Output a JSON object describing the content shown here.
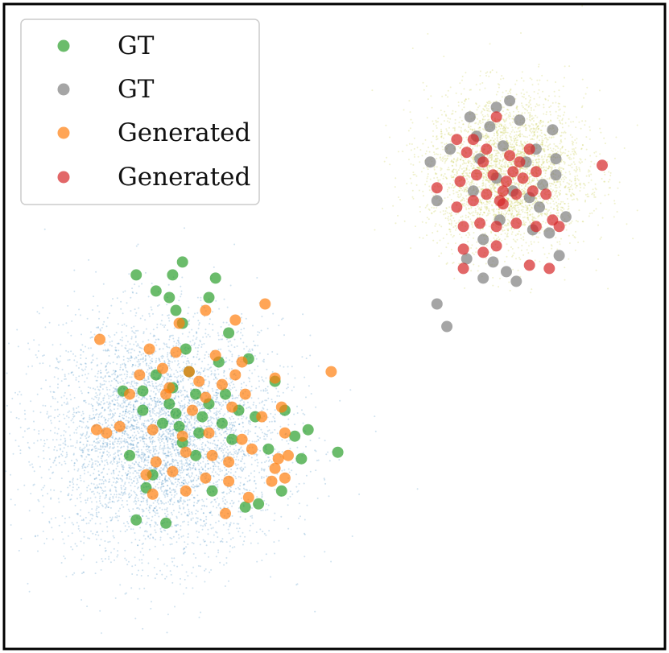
{
  "chart_data": {
    "type": "scatter",
    "title": "",
    "xlabel": "",
    "ylabel": "",
    "axes_ticks_visible": false,
    "grid": false,
    "legend_position": "top-left",
    "xlim": [
      -5,
      5
    ],
    "ylim": [
      -5,
      5
    ],
    "clusters": [
      {
        "role": "background density",
        "color": "#1f77b4",
        "center": [
          -2.6,
          -1.7
        ],
        "spread": 0.9,
        "count": 5000
      },
      {
        "role": "background density",
        "color": "#bcbd22",
        "center": [
          2.6,
          2.4
        ],
        "spread": 0.6,
        "count": 3500
      }
    ],
    "series": [
      {
        "name": "GT",
        "color": "#2ca02c",
        "points": [
          [
            -3.0,
            0.8
          ],
          [
            -2.3,
            1.0
          ],
          [
            -2.45,
            0.8
          ],
          [
            -1.8,
            0.75
          ],
          [
            -2.7,
            0.55
          ],
          [
            -1.9,
            0.45
          ],
          [
            -2.5,
            0.45
          ],
          [
            -2.4,
            0.25
          ],
          [
            -2.3,
            0.05
          ],
          [
            -1.6,
            -0.1
          ],
          [
            -2.25,
            -0.35
          ],
          [
            -2.7,
            -0.75
          ],
          [
            -3.2,
            -1.0
          ],
          [
            -2.9,
            -1.0
          ],
          [
            -2.45,
            -0.95
          ],
          [
            -2.1,
            -1.05
          ],
          [
            -1.45,
            -1.3
          ],
          [
            -2.35,
            -1.55
          ],
          [
            -2.6,
            -1.5
          ],
          [
            -2.9,
            -1.3
          ],
          [
            -2.0,
            -1.4
          ],
          [
            -2.3,
            -1.8
          ],
          [
            -1.55,
            -1.75
          ],
          [
            -3.1,
            -2.0
          ],
          [
            -1.2,
            -1.4
          ],
          [
            -0.9,
            -0.85
          ],
          [
            -0.6,
            -1.7
          ],
          [
            -1.0,
            -1.9
          ],
          [
            -0.5,
            -2.05
          ],
          [
            -2.75,
            -2.3
          ],
          [
            -1.85,
            -2.55
          ],
          [
            -1.35,
            -2.8
          ],
          [
            -0.8,
            -2.55
          ],
          [
            -1.15,
            -2.75
          ],
          [
            -2.55,
            -3.05
          ],
          [
            -0.4,
            -1.6
          ],
          [
            0.05,
            -1.95
          ],
          [
            -2.2,
            -0.7
          ],
          [
            -1.75,
            -0.55
          ],
          [
            -2.5,
            -1.2
          ],
          [
            -2.05,
            -1.65
          ],
          [
            -1.65,
            -1.05
          ],
          [
            -0.75,
            -1.3
          ],
          [
            -2.85,
            -2.5
          ],
          [
            -3.0,
            -3.0
          ],
          [
            -1.3,
            -0.5
          ],
          [
            -2.1,
            -2.0
          ],
          [
            -1.9,
            -1.2
          ],
          [
            -2.4,
            -1.35
          ],
          [
            -1.7,
            -1.5
          ]
        ]
      },
      {
        "name": "GT",
        "color": "#7f7f7f",
        "points": [
          [
            2.45,
            3.4
          ],
          [
            2.65,
            3.5
          ],
          [
            2.35,
            3.1
          ],
          [
            2.8,
            3.2
          ],
          [
            2.15,
            2.95
          ],
          [
            3.3,
            3.05
          ],
          [
            1.45,
            2.55
          ],
          [
            1.75,
            2.75
          ],
          [
            2.55,
            2.8
          ],
          [
            2.9,
            2.55
          ],
          [
            3.05,
            2.75
          ],
          [
            3.35,
            2.35
          ],
          [
            1.55,
            1.95
          ],
          [
            2.1,
            2.1
          ],
          [
            3.1,
            1.85
          ],
          [
            3.5,
            1.7
          ],
          [
            3.25,
            1.45
          ],
          [
            3.4,
            1.1
          ],
          [
            3.0,
            1.5
          ],
          [
            2.25,
            1.35
          ],
          [
            2.0,
            1.05
          ],
          [
            2.4,
            1.0
          ],
          [
            2.6,
            0.85
          ],
          [
            2.25,
            0.75
          ],
          [
            1.55,
            0.35
          ],
          [
            1.7,
            0.0
          ],
          [
            2.75,
            0.7
          ],
          [
            2.2,
            2.6
          ],
          [
            2.45,
            2.3
          ],
          [
            3.35,
            2.6
          ],
          [
            2.05,
            3.25
          ],
          [
            2.95,
            2.0
          ],
          [
            2.7,
            2.1
          ],
          [
            2.5,
            1.65
          ],
          [
            3.15,
            2.2
          ]
        ]
      },
      {
        "name": "Generated",
        "color": "#ff7f0e",
        "points": [
          [
            -3.55,
            -0.2
          ],
          [
            -1.95,
            0.25
          ],
          [
            -2.35,
            0.05
          ],
          [
            -1.5,
            0.1
          ],
          [
            -1.05,
            0.35
          ],
          [
            -2.8,
            -0.35
          ],
          [
            -2.4,
            -0.4
          ],
          [
            -1.8,
            -0.45
          ],
          [
            -1.4,
            -0.55
          ],
          [
            -2.95,
            -0.75
          ],
          [
            -2.6,
            -0.65
          ],
          [
            -2.2,
            -0.7
          ],
          [
            -1.5,
            -0.75
          ],
          [
            -0.9,
            -0.8
          ],
          [
            -0.05,
            -0.7
          ],
          [
            -3.1,
            -1.05
          ],
          [
            -2.55,
            -1.05
          ],
          [
            -1.95,
            -1.1
          ],
          [
            -1.55,
            -1.25
          ],
          [
            -0.8,
            -1.25
          ],
          [
            -3.25,
            -1.55
          ],
          [
            -2.75,
            -1.6
          ],
          [
            -2.3,
            -1.7
          ],
          [
            -1.9,
            -1.65
          ],
          [
            -1.4,
            -1.75
          ],
          [
            -0.75,
            -1.65
          ],
          [
            -3.6,
            -1.6
          ],
          [
            -3.45,
            -1.65
          ],
          [
            -2.25,
            -1.95
          ],
          [
            -1.85,
            -2.0
          ],
          [
            -1.6,
            -2.1
          ],
          [
            -0.85,
            -2.05
          ],
          [
            -2.7,
            -2.1
          ],
          [
            -2.85,
            -2.3
          ],
          [
            -1.95,
            -2.35
          ],
          [
            -1.6,
            -2.4
          ],
          [
            -0.95,
            -2.4
          ],
          [
            -2.25,
            -2.55
          ],
          [
            -1.3,
            -2.65
          ],
          [
            -2.45,
            -2.25
          ],
          [
            -1.65,
            -2.9
          ],
          [
            -2.75,
            -2.6
          ],
          [
            -1.1,
            -1.4
          ],
          [
            -0.9,
            -2.2
          ],
          [
            -1.25,
            -1.9
          ],
          [
            -2.05,
            -0.85
          ],
          [
            -2.5,
            -0.95
          ],
          [
            -1.7,
            -0.9
          ],
          [
            -2.15,
            -1.3
          ],
          [
            -1.35,
            -1.05
          ],
          [
            -0.7,
            -2.0
          ],
          [
            -0.75,
            -2.35
          ]
        ]
      },
      {
        "name": "Generated",
        "color": "#d62728",
        "points": [
          [
            1.85,
            2.9
          ],
          [
            2.1,
            2.9
          ],
          [
            2.45,
            3.25
          ],
          [
            2.65,
            2.65
          ],
          [
            2.95,
            2.75
          ],
          [
            2.25,
            2.55
          ],
          [
            2.7,
            2.4
          ],
          [
            1.55,
            2.15
          ],
          [
            1.9,
            2.25
          ],
          [
            2.15,
            2.35
          ],
          [
            2.4,
            2.35
          ],
          [
            2.6,
            2.25
          ],
          [
            2.85,
            2.3
          ],
          [
            3.05,
            2.4
          ],
          [
            1.85,
            1.85
          ],
          [
            2.1,
            1.95
          ],
          [
            2.3,
            2.05
          ],
          [
            2.5,
            1.95
          ],
          [
            2.75,
            2.05
          ],
          [
            3.0,
            2.1
          ],
          [
            3.2,
            2.05
          ],
          [
            1.95,
            1.55
          ],
          [
            2.2,
            1.6
          ],
          [
            2.45,
            1.55
          ],
          [
            2.75,
            1.6
          ],
          [
            3.05,
            1.55
          ],
          [
            3.3,
            1.65
          ],
          [
            1.95,
            1.2
          ],
          [
            2.45,
            1.25
          ],
          [
            2.25,
            1.15
          ],
          [
            3.4,
            1.55
          ],
          [
            2.95,
            0.95
          ],
          [
            1.95,
            0.9
          ],
          [
            2.55,
            1.9
          ],
          [
            4.05,
            2.5
          ],
          [
            3.25,
            0.9
          ],
          [
            2.3,
            2.75
          ],
          [
            2.55,
            2.1
          ],
          [
            2.0,
            2.7
          ],
          [
            2.8,
            2.55
          ]
        ]
      }
    ]
  },
  "legend": {
    "entries": [
      {
        "label": "GT",
        "color": "#2ca02c"
      },
      {
        "label": "GT",
        "color": "#7f7f7f"
      },
      {
        "label": "Generated",
        "color": "#ff7f0e"
      },
      {
        "label": "Generated",
        "color": "#d62728"
      }
    ]
  }
}
